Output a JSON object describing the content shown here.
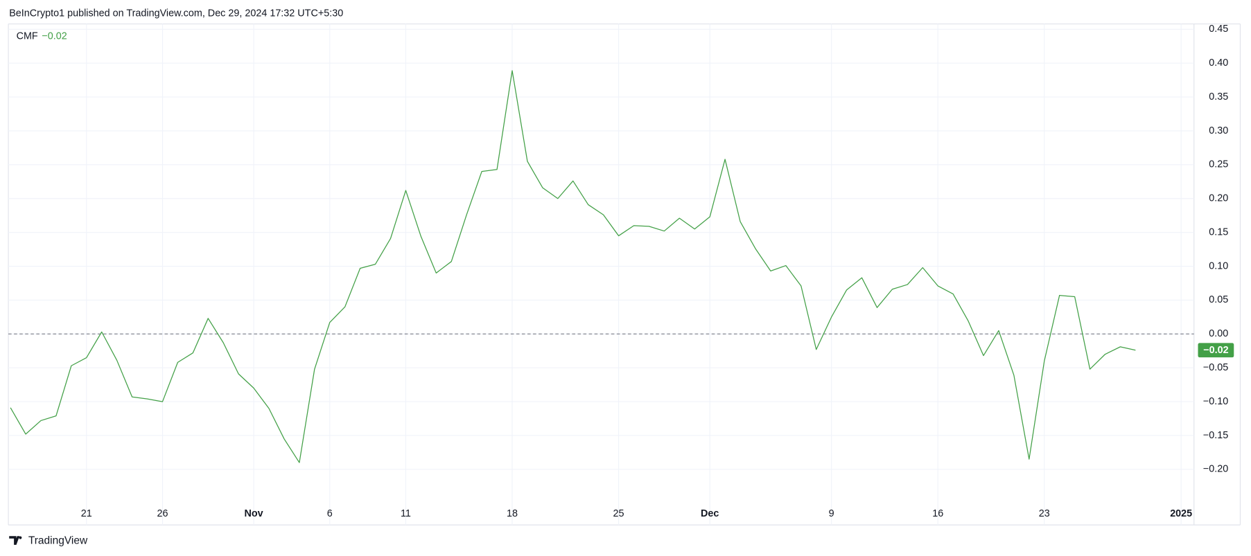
{
  "header": {
    "text": "BeInCrypto1 published on TradingView.com, Dec 29, 2024 17:32 UTC+5:30"
  },
  "footer": {
    "logo": "TradingView"
  },
  "chart_data": {
    "type": "line",
    "x": [
      "2024-10-16",
      "2024-10-17",
      "2024-10-18",
      "2024-10-19",
      "2024-10-20",
      "2024-10-21",
      "2024-10-22",
      "2024-10-23",
      "2024-10-24",
      "2024-10-25",
      "2024-10-26",
      "2024-10-27",
      "2024-10-28",
      "2024-10-29",
      "2024-10-30",
      "2024-10-31",
      "2024-11-01",
      "2024-11-02",
      "2024-11-03",
      "2024-11-04",
      "2024-11-05",
      "2024-11-06",
      "2024-11-07",
      "2024-11-08",
      "2024-11-09",
      "2024-11-10",
      "2024-11-11",
      "2024-11-12",
      "2024-11-13",
      "2024-11-14",
      "2024-11-15",
      "2024-11-16",
      "2024-11-17",
      "2024-11-18",
      "2024-11-19",
      "2024-11-20",
      "2024-11-21",
      "2024-11-22",
      "2024-11-23",
      "2024-11-24",
      "2024-11-25",
      "2024-11-26",
      "2024-11-27",
      "2024-11-28",
      "2024-11-29",
      "2024-11-30",
      "2024-12-01",
      "2024-12-02",
      "2024-12-03",
      "2024-12-04",
      "2024-12-05",
      "2024-12-06",
      "2024-12-07",
      "2024-12-08",
      "2024-12-09",
      "2024-12-10",
      "2024-12-11",
      "2024-12-12",
      "2024-12-13",
      "2024-12-14",
      "2024-12-15",
      "2024-12-16",
      "2024-12-17",
      "2024-12-18",
      "2024-12-19",
      "2024-12-20",
      "2024-12-21",
      "2024-12-22",
      "2024-12-23",
      "2024-12-24",
      "2024-12-25",
      "2024-12-26",
      "2024-12-27",
      "2024-12-28",
      "2024-12-29"
    ],
    "series": [
      {
        "name": "CMF",
        "color": "#43a047",
        "values": [
          -0.109,
          -0.148,
          -0.128,
          -0.121,
          -0.047,
          -0.035,
          0.003,
          -0.039,
          -0.093,
          -0.096,
          -0.1,
          -0.042,
          -0.028,
          0.023,
          -0.013,
          -0.059,
          -0.08,
          -0.11,
          -0.155,
          -0.19,
          -0.052,
          0.017,
          0.04,
          0.097,
          0.103,
          0.141,
          0.212,
          0.144,
          0.09,
          0.107,
          0.176,
          0.24,
          0.243,
          0.389,
          0.255,
          0.216,
          0.2,
          0.226,
          0.191,
          0.176,
          0.145,
          0.16,
          0.159,
          0.152,
          0.171,
          0.155,
          0.173,
          0.258,
          0.166,
          0.126,
          0.093,
          0.101,
          0.071,
          -0.023,
          0.025,
          0.065,
          0.083,
          0.039,
          0.066,
          0.073,
          0.098,
          0.071,
          0.059,
          0.019,
          -0.032,
          0.005,
          -0.061,
          -0.185,
          -0.04,
          0.057,
          0.055,
          -0.052,
          -0.03,
          -0.019,
          -0.024
        ],
        "last_value_label": "−0.02"
      }
    ],
    "xlim": [
      "2024-10-16",
      "2025-01-03"
    ],
    "xticks": [
      {
        "value": "2024-10-21",
        "label": "21"
      },
      {
        "value": "2024-10-26",
        "label": "26"
      },
      {
        "value": "2024-11-01",
        "label": "Nov"
      },
      {
        "value": "2024-11-06",
        "label": "6"
      },
      {
        "value": "2024-11-11",
        "label": "11"
      },
      {
        "value": "2024-11-18",
        "label": "18"
      },
      {
        "value": "2024-11-25",
        "label": "25"
      },
      {
        "value": "2024-12-01",
        "label": "Dec"
      },
      {
        "value": "2024-12-09",
        "label": "9"
      },
      {
        "value": "2024-12-16",
        "label": "16"
      },
      {
        "value": "2024-12-23",
        "label": "23"
      },
      {
        "value": "2025-01-01",
        "label": "2025"
      }
    ],
    "ylim": [
      -0.248,
      0.458
    ],
    "yticks": [
      {
        "value": 0.45,
        "label": "0.45"
      },
      {
        "value": 0.4,
        "label": "0.40"
      },
      {
        "value": 0.35,
        "label": "0.35"
      },
      {
        "value": 0.3,
        "label": "0.30"
      },
      {
        "value": 0.25,
        "label": "0.25"
      },
      {
        "value": 0.2,
        "label": "0.20"
      },
      {
        "value": 0.15,
        "label": "0.15"
      },
      {
        "value": 0.1,
        "label": "0.10"
      },
      {
        "value": 0.05,
        "label": "0.05"
      },
      {
        "value": 0,
        "label": "0.00"
      },
      {
        "value": -0.05,
        "label": "−0.05"
      },
      {
        "value": -0.1,
        "label": "−0.10"
      },
      {
        "value": -0.15,
        "label": "−0.15"
      },
      {
        "value": -0.2,
        "label": "−0.20"
      }
    ],
    "grid": true
  }
}
